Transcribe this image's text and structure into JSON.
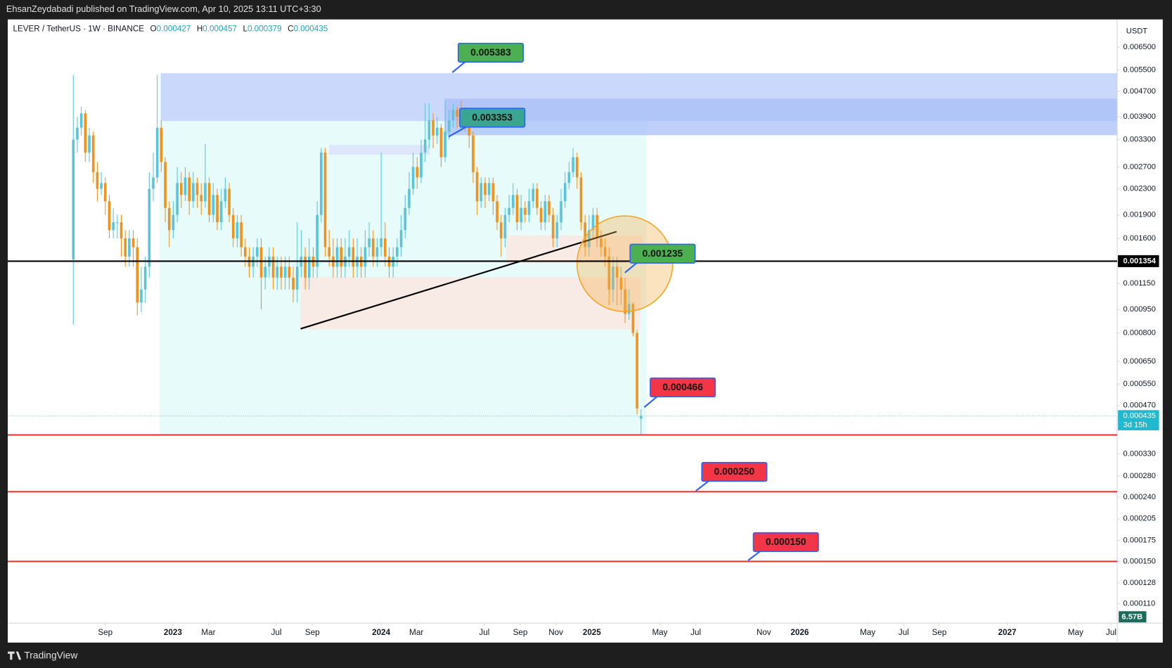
{
  "header": {
    "published": "EhsanZeydabadi published on TradingView.com, Apr 10, 2025 13:11 UTC+3:30"
  },
  "legend": {
    "symbol": "LEVER / TetherUS · 1W · BINANCE",
    "o_label": "O",
    "open": "0.000427",
    "h_label": "H",
    "high": "0.000457",
    "l_label": "L",
    "low": "0.000379",
    "c_label": "C",
    "close": "0.000435"
  },
  "footer": {
    "brand": "TradingView"
  },
  "chart_data": {
    "type": "candlestick",
    "currency": "USDT",
    "yscale": "log",
    "up_color": "#5bc4d8",
    "down_color": "#f0921e",
    "ylim": [
      9.54e-05,
      0.00796
    ],
    "xlim": [
      -16.4,
      261.1
    ],
    "open": [
      0.00137,
      0.0033,
      0.0036,
      0.004,
      0.003,
      0.0034,
      0.0026,
      0.0023,
      0.0024,
      0.0021,
      0.0017,
      0.0018,
      0.0018,
      0.0016,
      0.0014,
      0.0016,
      0.0015,
      0.001,
      0.0011,
      0.0013,
      0.0023,
      0.0025,
      0.0036,
      0.0028,
      0.002,
      0.0017,
      0.0019,
      0.0024,
      0.0022,
      0.0025,
      0.0021,
      0.0024,
      0.0022,
      0.0021,
      0.0024,
      0.0019,
      0.0022,
      0.0018,
      0.0021,
      0.0023,
      0.0019,
      0.0016,
      0.0018,
      0.0015,
      0.0014,
      0.0013,
      0.0014,
      0.0015,
      0.0012,
      0.0013,
      0.0014,
      0.0012,
      0.0013,
      0.0012,
      0.0013,
      0.0012,
      0.0011,
      0.0013,
      0.0014,
      0.0012,
      0.0014,
      0.0013,
      0.0019,
      0.003,
      0.0015,
      0.0014,
      0.0013,
      0.0015,
      0.0013,
      0.0014,
      0.0015,
      0.0013,
      0.0014,
      0.0013,
      0.0015,
      0.0016,
      0.0014,
      0.0015,
      0.0016,
      0.0014,
      0.0013,
      0.0014,
      0.0015,
      0.0017,
      0.002,
      0.0023,
      0.0027,
      0.0025,
      0.003,
      0.0033,
      0.0038,
      0.0034,
      0.0036,
      0.0029,
      0.0035,
      0.0038,
      0.0041,
      0.0039,
      0.0037,
      0.004,
      0.0034,
      0.0026,
      0.0021,
      0.0024,
      0.0022,
      0.0024,
      0.0021,
      0.0018,
      0.0016,
      0.0019,
      0.002,
      0.0022,
      0.0018,
      0.002,
      0.0019,
      0.0021,
      0.0023,
      0.002,
      0.0018,
      0.0021,
      0.0019,
      0.0016,
      0.0018,
      0.0021,
      0.0024,
      0.0026,
      0.0029,
      0.0025,
      0.0018,
      0.0015,
      0.0017,
      0.0019,
      0.0016,
      0.0015,
      0.0014,
      0.0011,
      0.0013,
      0.0012,
      0.0011,
      0.00092,
      0.00099,
      0.0008,
      0.000427
    ],
    "high": [
      0.0053,
      0.0039,
      0.0042,
      0.0041,
      0.0036,
      0.0035,
      0.0028,
      0.0026,
      0.0025,
      0.0022,
      0.002,
      0.0019,
      0.0019,
      0.0017,
      0.0017,
      0.0017,
      0.0016,
      0.0013,
      0.0014,
      0.0026,
      0.003,
      0.0053,
      0.0038,
      0.0029,
      0.0021,
      0.0021,
      0.0027,
      0.0026,
      0.0027,
      0.0026,
      0.0026,
      0.0025,
      0.0024,
      0.0032,
      0.0025,
      0.0024,
      0.0023,
      0.0023,
      0.0025,
      0.0024,
      0.002,
      0.0019,
      0.0019,
      0.0016,
      0.0015,
      0.0015,
      0.0016,
      0.0016,
      0.0014,
      0.0015,
      0.0015,
      0.0014,
      0.0014,
      0.0014,
      0.0014,
      0.0013,
      0.0018,
      0.0017,
      0.0015,
      0.0016,
      0.0015,
      0.0021,
      0.0031,
      0.0031,
      0.0017,
      0.0016,
      0.0016,
      0.0016,
      0.0016,
      0.0017,
      0.0016,
      0.0016,
      0.0015,
      0.0017,
      0.0018,
      0.0017,
      0.0016,
      0.003,
      0.0018,
      0.0015,
      0.0015,
      0.0016,
      0.0019,
      0.0022,
      0.0026,
      0.003,
      0.0029,
      0.0033,
      0.0043,
      0.0043,
      0.004,
      0.0039,
      0.0037,
      0.0044,
      0.0041,
      0.0043,
      0.0042,
      0.0044,
      0.0042,
      0.0041,
      0.0035,
      0.0027,
      0.0025,
      0.0025,
      0.0025,
      0.0025,
      0.0022,
      0.0019,
      0.002,
      0.0022,
      0.0024,
      0.0023,
      0.0022,
      0.0021,
      0.0023,
      0.0024,
      0.0024,
      0.0021,
      0.0022,
      0.0022,
      0.002,
      0.0019,
      0.0023,
      0.0026,
      0.0028,
      0.0031,
      0.003,
      0.0026,
      0.0019,
      0.0019,
      0.002,
      0.002,
      0.0017,
      0.0016,
      0.0015,
      0.0014,
      0.0014,
      0.0013,
      0.0012,
      0.0011,
      0.001,
      0.00082,
      0.000457
    ],
    "low": [
      0.00085,
      0.003,
      0.0034,
      0.0028,
      0.0028,
      0.0024,
      0.0021,
      0.0022,
      0.0019,
      0.0016,
      0.0016,
      0.0016,
      0.0014,
      0.0013,
      0.0013,
      0.0013,
      0.00091,
      0.00093,
      0.001,
      0.0012,
      0.0021,
      0.0024,
      0.0026,
      0.0018,
      0.0015,
      0.0016,
      0.0018,
      0.002,
      0.0021,
      0.0019,
      0.002,
      0.002,
      0.0019,
      0.002,
      0.0018,
      0.0018,
      0.0017,
      0.0017,
      0.002,
      0.0018,
      0.0015,
      0.0015,
      0.0014,
      0.0013,
      0.0012,
      0.0012,
      0.0013,
      0.00095,
      0.0011,
      0.0012,
      0.0011,
      0.0011,
      0.0011,
      0.0011,
      0.0011,
      0.001,
      0.001,
      0.0012,
      0.0011,
      0.0011,
      0.0012,
      0.0012,
      0.0018,
      0.0014,
      0.0013,
      0.0012,
      0.0012,
      0.0012,
      0.0012,
      0.0013,
      0.0012,
      0.0012,
      0.0012,
      0.0012,
      0.0014,
      0.0013,
      0.0013,
      0.0014,
      0.0013,
      0.0012,
      0.0012,
      0.0013,
      0.0014,
      0.0016,
      0.0019,
      0.0022,
      0.0023,
      0.0024,
      0.0028,
      0.0031,
      0.0031,
      0.0032,
      0.0027,
      0.0028,
      0.0033,
      0.0036,
      0.0036,
      0.0035,
      0.0035,
      0.0031,
      0.0024,
      0.0019,
      0.002,
      0.002,
      0.0021,
      0.0019,
      0.0017,
      0.0014,
      0.0015,
      0.0018,
      0.0019,
      0.0017,
      0.0017,
      0.0018,
      0.0018,
      0.002,
      0.0019,
      0.0017,
      0.0017,
      0.0018,
      0.0015,
      0.0015,
      0.0017,
      0.002,
      0.0023,
      0.0025,
      0.0023,
      0.0017,
      0.0014,
      0.0014,
      0.0016,
      0.0015,
      0.0014,
      0.0013,
      0.00098,
      0.001,
      0.00098,
      0.00098,
      0.00086,
      0.00088,
      0.00078,
      0.00044,
      0.000379
    ],
    "close": [
      0.0033,
      0.0036,
      0.004,
      0.003,
      0.0034,
      0.0026,
      0.0023,
      0.0024,
      0.0021,
      0.0017,
      0.0018,
      0.0018,
      0.0016,
      0.0014,
      0.0016,
      0.0015,
      0.001,
      0.0011,
      0.0013,
      0.0023,
      0.0025,
      0.0036,
      0.0028,
      0.002,
      0.0017,
      0.0019,
      0.0024,
      0.0022,
      0.0025,
      0.0021,
      0.0024,
      0.0022,
      0.0021,
      0.0024,
      0.0019,
      0.0022,
      0.0018,
      0.0021,
      0.0023,
      0.0019,
      0.0016,
      0.0018,
      0.0015,
      0.0014,
      0.0013,
      0.0014,
      0.0015,
      0.0012,
      0.0013,
      0.0014,
      0.0012,
      0.0013,
      0.0012,
      0.0013,
      0.0012,
      0.0011,
      0.0013,
      0.0014,
      0.0012,
      0.0014,
      0.0013,
      0.0019,
      0.003,
      0.0015,
      0.0014,
      0.0013,
      0.0015,
      0.0013,
      0.0014,
      0.0015,
      0.0013,
      0.0014,
      0.0013,
      0.0015,
      0.0016,
      0.0014,
      0.0015,
      0.0016,
      0.0014,
      0.0013,
      0.0014,
      0.0015,
      0.0017,
      0.002,
      0.0023,
      0.0027,
      0.0025,
      0.003,
      0.0033,
      0.0038,
      0.0034,
      0.0036,
      0.0029,
      0.0035,
      0.0038,
      0.0041,
      0.0039,
      0.0037,
      0.004,
      0.0034,
      0.0026,
      0.0021,
      0.0024,
      0.0022,
      0.0024,
      0.0021,
      0.0018,
      0.0016,
      0.0019,
      0.002,
      0.0022,
      0.0018,
      0.002,
      0.0019,
      0.0021,
      0.0023,
      0.002,
      0.0018,
      0.0021,
      0.0019,
      0.0016,
      0.0018,
      0.0021,
      0.0024,
      0.0026,
      0.0029,
      0.0025,
      0.0018,
      0.0015,
      0.0017,
      0.0019,
      0.0016,
      0.0015,
      0.0014,
      0.0011,
      0.0013,
      0.0012,
      0.0011,
      0.00092,
      0.00099,
      0.0008,
      0.00046,
      0.000435
    ],
    "yticks": [
      {
        "value": 0.0065,
        "label": "0.006500"
      },
      {
        "value": 0.0055,
        "label": "0.005500"
      },
      {
        "value": 0.0047,
        "label": "0.004700"
      },
      {
        "value": 0.0039,
        "label": "0.003900"
      },
      {
        "value": 0.0033,
        "label": "0.003300"
      },
      {
        "value": 0.0027,
        "label": "0.002700"
      },
      {
        "value": 0.0023,
        "label": "0.002300"
      },
      {
        "value": 0.0019,
        "label": "0.001900"
      },
      {
        "value": 0.0016,
        "label": "0.001600"
      },
      {
        "value": 0.00115,
        "label": "0.001150"
      },
      {
        "value": 0.00095,
        "label": "0.000950"
      },
      {
        "value": 0.0008,
        "label": "0.000800"
      },
      {
        "value": 0.00065,
        "label": "0.000650"
      },
      {
        "value": 0.00055,
        "label": "0.000550"
      },
      {
        "value": 0.00047,
        "label": "0.000470"
      },
      {
        "value": 0.00033,
        "label": "0.000330"
      },
      {
        "value": 0.00028,
        "label": "0.000280"
      },
      {
        "value": 0.00024,
        "label": "0.000240"
      },
      {
        "value": 0.000205,
        "label": "0.000205"
      },
      {
        "value": 0.000175,
        "label": "0.000175"
      },
      {
        "value": 0.00015,
        "label": "0.000150"
      },
      {
        "value": 0.000128,
        "label": "0.000128"
      },
      {
        "value": 0.00011,
        "label": "0.000110"
      }
    ],
    "xticks": [
      {
        "value": 8,
        "label": "Sep"
      },
      {
        "value": 24.9,
        "label": "2023"
      },
      {
        "value": 33.8,
        "label": "Mar"
      },
      {
        "value": 50.8,
        "label": "Jul"
      },
      {
        "value": 59.8,
        "label": "Sep"
      },
      {
        "value": 77,
        "label": "2024"
      },
      {
        "value": 85.8,
        "label": "Mar"
      },
      {
        "value": 102.8,
        "label": "Jul"
      },
      {
        "value": 111.8,
        "label": "Sep"
      },
      {
        "value": 120.7,
        "label": "Nov"
      },
      {
        "value": 129.7,
        "label": "2025"
      },
      {
        "value": 146.7,
        "label": "May"
      },
      {
        "value": 155.7,
        "label": "Jul"
      },
      {
        "value": 172.7,
        "label": "Nov"
      },
      {
        "value": 181.7,
        "label": "2026"
      },
      {
        "value": 198.7,
        "label": "May"
      },
      {
        "value": 207.7,
        "label": "Jul"
      },
      {
        "value": 216.6,
        "label": "Sep"
      },
      {
        "value": 233.6,
        "label": "2027"
      },
      {
        "value": 250.7,
        "label": "May"
      },
      {
        "value": 259.6,
        "label": "Jul"
      }
    ],
    "levels": [
      {
        "value": 0.001354,
        "label": "0.001354",
        "color": "#000000"
      },
      {
        "value": 0.000379,
        "color": "#e53935"
      },
      {
        "value": 0.00025,
        "color": "#e53935"
      },
      {
        "value": 0.00015,
        "color": "#e53935"
      }
    ],
    "annotations": [
      {
        "label": "0.005383",
        "color": "#4caf50"
      },
      {
        "label": "0.003353",
        "color": "#3aa68f"
      },
      {
        "label": "0.001235",
        "color": "#4caf50"
      },
      {
        "label": "0.000466",
        "color": "#f23645"
      },
      {
        "label": "0.000250",
        "color": "#f23645"
      },
      {
        "label": "0.000150",
        "color": "#f23645"
      }
    ],
    "last_price_label": "0.000435",
    "countdown": "3d 15h",
    "volume_label": "6.57B"
  }
}
